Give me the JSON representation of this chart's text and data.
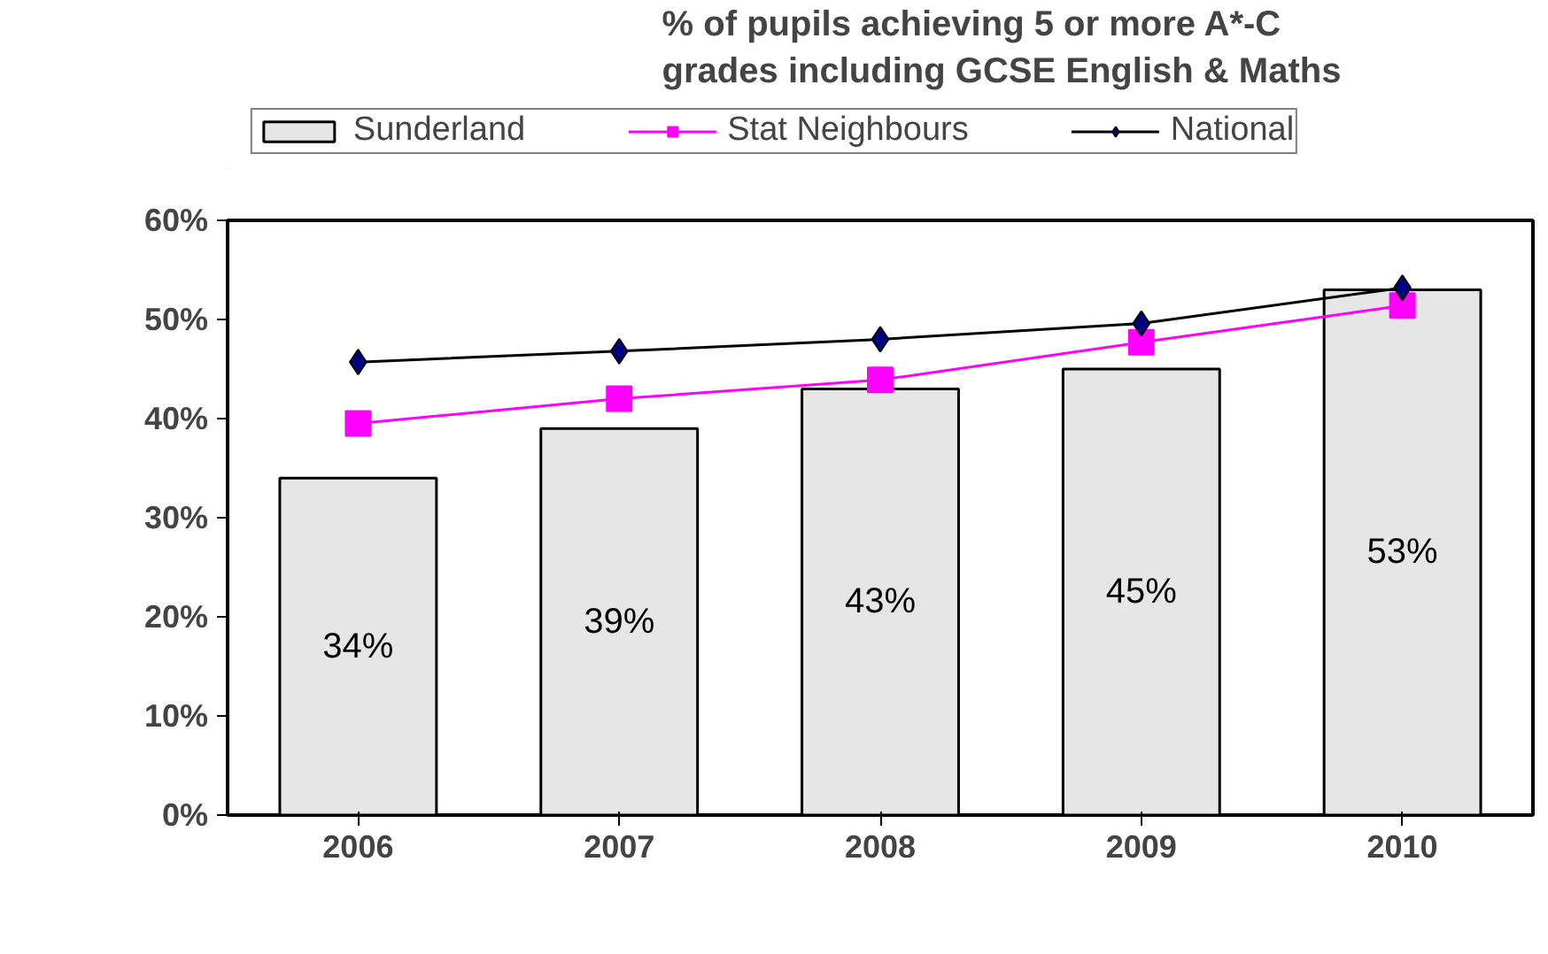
{
  "chart_data": {
    "type": "bar",
    "title": "% of pupils achieving 5 or more A*-C\ngrades including GCSE English & Maths",
    "categories": [
      "2006",
      "2007",
      "2008",
      "2009",
      "2010"
    ],
    "series": [
      {
        "name": "Sunderland",
        "color": "#e6e6e6",
        "values": [
          34,
          39,
          43,
          45,
          53
        ],
        "value_labels": [
          "34%",
          "39%",
          "43%",
          "45%",
          "53%"
        ]
      },
      {
        "name": "Stat Neighbours",
        "type": "line",
        "color": "#ff00ff",
        "marker": "square",
        "values": [
          39.5,
          42.0,
          43.9,
          47.7,
          51.4
        ]
      },
      {
        "name": "National",
        "type": "line",
        "color": "#000000",
        "marker": "diamond",
        "values": [
          45.7,
          46.8,
          48.0,
          49.6,
          53.2
        ]
      }
    ],
    "ylim": [
      0,
      60
    ],
    "yticks": [
      {
        "value": 0,
        "label": "0%"
      },
      {
        "value": 10,
        "label": "10%"
      },
      {
        "value": 20,
        "label": "20%"
      },
      {
        "value": 30,
        "label": "30%"
      },
      {
        "value": 40,
        "label": "40%"
      },
      {
        "value": 50,
        "label": "50%"
      },
      {
        "value": 60,
        "label": "60%"
      }
    ],
    "grid": false,
    "legend": "top"
  }
}
